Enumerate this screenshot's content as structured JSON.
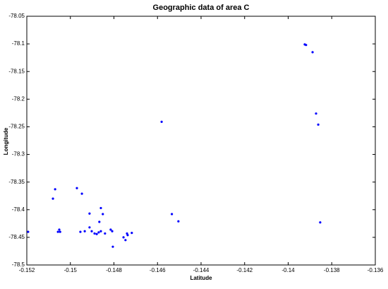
{
  "chart_data": {
    "type": "scatter",
    "title": "Geographic data of area C",
    "x_label": "Latitude",
    "y_label": "Longitude",
    "color": "#0000ff",
    "x": [
      -0.13924,
      -0.13918,
      -0.13888,
      -0.13872,
      -0.13862,
      -0.13853,
      -0.14581,
      -0.1507,
      -0.1508,
      -0.1497,
      -0.14947,
      -0.15194,
      -0.15051,
      -0.15057,
      -0.15047,
      -0.14912,
      -0.1486,
      -0.14851,
      -0.14867,
      -0.14534,
      -0.14504,
      -0.14954,
      -0.14934,
      -0.14912,
      -0.14902,
      -0.14889,
      -0.14879,
      -0.1487,
      -0.1486,
      -0.14841,
      -0.14815,
      -0.14808,
      -0.14805,
      -0.14756,
      -0.14747,
      -0.1474,
      -0.14737,
      -0.14718
    ],
    "values": [
      -78.101,
      -78.102,
      -78.115,
      -78.226,
      -78.246,
      -78.423,
      -78.241,
      -78.363,
      -78.38,
      -78.361,
      -78.371,
      -78.44,
      -78.436,
      -78.44,
      -78.44,
      -78.407,
      -78.397,
      -78.408,
      -78.422,
      -78.408,
      -78.421,
      -78.44,
      -78.439,
      -78.432,
      -78.439,
      -78.443,
      -78.444,
      -78.441,
      -78.439,
      -78.443,
      -78.436,
      -78.439,
      -78.467,
      -78.45,
      -78.455,
      -78.443,
      -78.446,
      -78.442
    ],
    "xlim": [
      -0.152,
      -0.136
    ],
    "xticks": [
      -0.152,
      -0.15,
      -0.148,
      -0.146,
      -0.144,
      -0.142,
      -0.14,
      -0.138,
      -0.136
    ],
    "ylim": [
      -78.5,
      -78.05
    ],
    "yticks": [
      -78.05,
      -78.1,
      -78.15,
      -78.2,
      -78.25,
      -78.3,
      -78.35,
      -78.4,
      -78.45,
      -78.5
    ]
  }
}
